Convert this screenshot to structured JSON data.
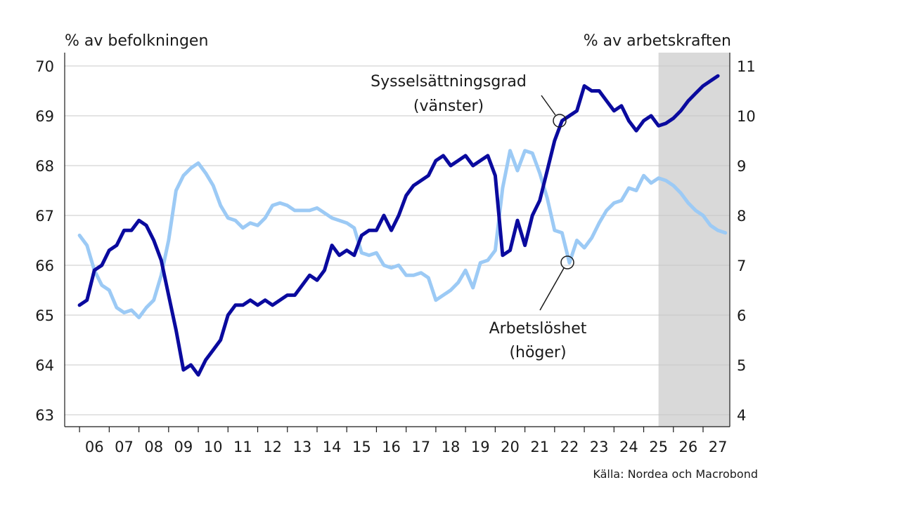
{
  "chart_data": {
    "type": "line",
    "y_left_label": "% av befolkningen",
    "y_right_label": "% av arbetskraften",
    "y_left_range": [
      63,
      70
    ],
    "y_right_range": [
      4,
      11
    ],
    "y_left_ticks": [
      "63",
      "64",
      "65",
      "66",
      "67",
      "68",
      "69",
      "70"
    ],
    "y_right_ticks": [
      "4",
      "5",
      "6",
      "7",
      "8",
      "9",
      "10",
      "11"
    ],
    "x_range": [
      2005.5,
      2027.9
    ],
    "x_ticks": [
      {
        "label": "06",
        "x": 2006.5
      },
      {
        "label": "07",
        "x": 2007.5
      },
      {
        "label": "08",
        "x": 2008.5
      },
      {
        "label": "09",
        "x": 2009.5
      },
      {
        "label": "10",
        "x": 2010.5
      },
      {
        "label": "11",
        "x": 2011.5
      },
      {
        "label": "12",
        "x": 2012.5
      },
      {
        "label": "13",
        "x": 2013.5
      },
      {
        "label": "14",
        "x": 2014.5
      },
      {
        "label": "15",
        "x": 2015.5
      },
      {
        "label": "16",
        "x": 2016.5
      },
      {
        "label": "17",
        "x": 2017.5
      },
      {
        "label": "18",
        "x": 2018.5
      },
      {
        "label": "19",
        "x": 2019.5
      },
      {
        "label": "20",
        "x": 2020.5
      },
      {
        "label": "21",
        "x": 2021.5
      },
      {
        "label": "22",
        "x": 2022.5
      },
      {
        "label": "23",
        "x": 2023.5
      },
      {
        "label": "24",
        "x": 2024.5
      },
      {
        "label": "25",
        "x": 2025.5
      },
      {
        "label": "26",
        "x": 2026.5
      },
      {
        "label": "27",
        "x": 2027.5
      }
    ],
    "forecast_shade": [
      2025.5,
      2027.9
    ],
    "grid": true,
    "colors": {
      "employment": "#0a0a9e",
      "unemployment": "#9ccaf5",
      "forecast": "#d9d9d9",
      "grid": "#c8c8c8"
    },
    "series": [
      {
        "name": "Sysselsättningsgrad (vänster)",
        "axis": "left",
        "x_start": 2006.0,
        "step": 0.25,
        "values": [
          65.2,
          65.3,
          65.9,
          66.0,
          66.3,
          66.4,
          66.7,
          66.7,
          66.9,
          66.8,
          66.5,
          66.1,
          65.4,
          64.7,
          63.9,
          64.0,
          63.8,
          64.1,
          64.3,
          64.5,
          65.0,
          65.2,
          65.2,
          65.3,
          65.2,
          65.3,
          65.2,
          65.3,
          65.4,
          65.4,
          65.6,
          65.8,
          65.7,
          65.9,
          66.4,
          66.2,
          66.3,
          66.2,
          66.6,
          66.7,
          66.7,
          67.0,
          66.7,
          67.0,
          67.4,
          67.6,
          67.7,
          67.8,
          68.1,
          68.2,
          68.0,
          68.1,
          68.2,
          68.0,
          68.1,
          68.2,
          67.8,
          66.2,
          66.3,
          66.9,
          66.4,
          67.0,
          67.3,
          67.9,
          68.5,
          68.9,
          69.0,
          69.1,
          69.6,
          69.5,
          69.5,
          69.3,
          69.1,
          69.2,
          68.9,
          68.7,
          68.9,
          69.0,
          68.8,
          68.85,
          68.95,
          69.1,
          69.3,
          69.45,
          69.6,
          69.7,
          69.8
        ]
      },
      {
        "name": "Arbetslöshet (höger)",
        "axis": "right",
        "x_start": 2006.0,
        "step": 0.25,
        "values": [
          7.6,
          7.4,
          6.9,
          6.6,
          6.5,
          6.15,
          6.05,
          6.1,
          5.95,
          6.15,
          6.3,
          6.8,
          7.5,
          8.5,
          8.8,
          8.95,
          9.05,
          8.85,
          8.6,
          8.2,
          7.95,
          7.9,
          7.75,
          7.85,
          7.8,
          7.95,
          8.2,
          8.25,
          8.2,
          8.1,
          8.1,
          8.1,
          8.15,
          8.05,
          7.95,
          7.9,
          7.85,
          7.75,
          7.25,
          7.2,
          7.25,
          7.0,
          6.95,
          7.0,
          6.8,
          6.8,
          6.85,
          6.75,
          6.3,
          6.4,
          6.5,
          6.65,
          6.9,
          6.55,
          7.05,
          7.1,
          7.3,
          8.55,
          9.3,
          8.9,
          9.3,
          9.25,
          8.85,
          8.35,
          7.7,
          7.65,
          7.05,
          7.5,
          7.35,
          7.55,
          7.85,
          8.1,
          8.25,
          8.3,
          8.55,
          8.5,
          8.8,
          8.65,
          8.75,
          8.7,
          8.6,
          8.45,
          8.25,
          8.1,
          8.0,
          7.8,
          7.7,
          7.65
        ]
      }
    ],
    "annotations": [
      {
        "line1": "Sysselsättningsgrad",
        "line2": "(vänster)"
      },
      {
        "line1": "Arbetslöshet",
        "line2": "(höger)"
      }
    ],
    "source": "Källa: Nordea och Macrobond"
  }
}
